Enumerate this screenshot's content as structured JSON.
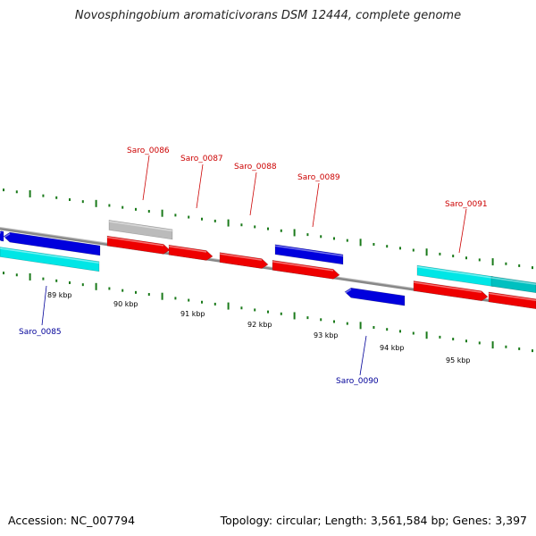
{
  "title": "Novosphingobium aromaticivorans DSM 12444, complete genome",
  "footer": {
    "accession": "Accession: NC_007794",
    "summary": "Topology: circular; Length: 3,561,584 bp; Genes: 3,397"
  },
  "colors": {
    "forward_gene": "#ee0000",
    "reverse_gene": "#0000dd",
    "forward_orf": "#00e6e6",
    "other_feature": "#bbbbbb",
    "backbone": "#888888",
    "tick": "#1a7a1a",
    "label_forward": "#cc0000",
    "label_reverse": "#000099"
  },
  "scale_labels": [
    "89 kbp",
    "90 kbp",
    "91 kbp",
    "92 kbp",
    "93 kbp",
    "94 kbp",
    "95 kbp"
  ],
  "gene_labels": [
    {
      "text": "Saro_0085",
      "strand": "reverse"
    },
    {
      "text": "Saro_0086",
      "strand": "forward"
    },
    {
      "text": "Saro_0087",
      "strand": "forward"
    },
    {
      "text": "Saro_0088",
      "strand": "forward"
    },
    {
      "text": "Saro_0089",
      "strand": "forward"
    },
    {
      "text": "Saro_0090",
      "strand": "reverse"
    },
    {
      "text": "Saro_0091",
      "strand": "forward"
    }
  ]
}
